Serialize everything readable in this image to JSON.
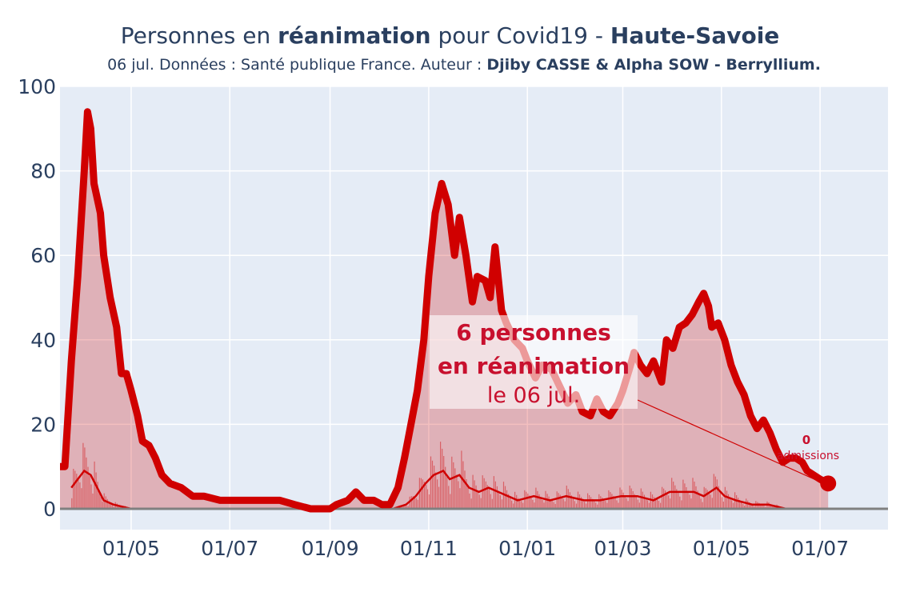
{
  "title": {
    "part1": "Personnes en ",
    "bold1": "réanimation",
    "part2": " pour Covid19 - ",
    "bold2": "Haute-Savoie"
  },
  "subtitle": {
    "text": "06 jul. Données : Santé publique France. Auteur : ",
    "authors": "Djiby CASSE & Alpha SOW - Berryllium."
  },
  "annotation": {
    "line1": "6 personnes",
    "line2": "en réanimation",
    "line3": "le 06 jul."
  },
  "admissions": {
    "count": "0",
    "label": "admissions"
  },
  "colors": {
    "plot_bg": "#e5ecf6",
    "line": "#d00000",
    "fill": "rgba(208,0,0,0.25)",
    "text": "#2a3f5f"
  },
  "chart_data": {
    "type": "area",
    "x_unit": "date",
    "x_range": [
      "2020-03-18",
      "2021-08-12"
    ],
    "ylim": [
      0,
      100
    ],
    "y_ticks": [
      "0",
      "20",
      "40",
      "60",
      "80",
      "100"
    ],
    "x_ticks": [
      {
        "date": "2020-05-01",
        "label": "01/05"
      },
      {
        "date": "2020-07-01",
        "label": "01/07"
      },
      {
        "date": "2020-09-01",
        "label": "01/09"
      },
      {
        "date": "2020-11-01",
        "label": "01/11"
      },
      {
        "date": "2021-01-01",
        "label": "01/01"
      },
      {
        "date": "2021-03-01",
        "label": "01/03"
      },
      {
        "date": "2021-05-01",
        "label": "01/05"
      },
      {
        "date": "2021-07-01",
        "label": "01/07"
      }
    ],
    "series": [
      {
        "name": "réanimation",
        "points": [
          [
            "2020-03-18",
            10
          ],
          [
            "2020-03-21",
            10
          ],
          [
            "2020-03-25",
            35
          ],
          [
            "2020-03-29",
            55
          ],
          [
            "2020-04-02",
            80
          ],
          [
            "2020-04-04",
            94
          ],
          [
            "2020-04-06",
            90
          ],
          [
            "2020-04-08",
            77
          ],
          [
            "2020-04-12",
            70
          ],
          [
            "2020-04-14",
            60
          ],
          [
            "2020-04-18",
            50
          ],
          [
            "2020-04-22",
            43
          ],
          [
            "2020-04-25",
            32
          ],
          [
            "2020-04-28",
            32
          ],
          [
            "2020-05-01",
            28
          ],
          [
            "2020-05-05",
            22
          ],
          [
            "2020-05-08",
            16
          ],
          [
            "2020-05-12",
            15
          ],
          [
            "2020-05-16",
            12
          ],
          [
            "2020-05-20",
            8
          ],
          [
            "2020-05-25",
            6
          ],
          [
            "2020-06-01",
            5
          ],
          [
            "2020-06-08",
            3
          ],
          [
            "2020-06-15",
            3
          ],
          [
            "2020-06-25",
            2
          ],
          [
            "2020-07-10",
            2
          ],
          [
            "2020-08-01",
            2
          ],
          [
            "2020-08-10",
            1
          ],
          [
            "2020-08-20",
            0
          ],
          [
            "2020-09-01",
            0
          ],
          [
            "2020-09-05",
            1
          ],
          [
            "2020-09-12",
            2
          ],
          [
            "2020-09-17",
            4
          ],
          [
            "2020-09-22",
            2
          ],
          [
            "2020-09-28",
            2
          ],
          [
            "2020-10-03",
            1
          ],
          [
            "2020-10-08",
            1
          ],
          [
            "2020-10-13",
            5
          ],
          [
            "2020-10-17",
            12
          ],
          [
            "2020-10-21",
            20
          ],
          [
            "2020-10-25",
            28
          ],
          [
            "2020-10-29",
            40
          ],
          [
            "2020-11-01",
            55
          ],
          [
            "2020-11-05",
            70
          ],
          [
            "2020-11-09",
            77
          ],
          [
            "2020-11-13",
            72
          ],
          [
            "2020-11-17",
            60
          ],
          [
            "2020-11-20",
            69
          ],
          [
            "2020-11-24",
            60
          ],
          [
            "2020-11-28",
            49
          ],
          [
            "2020-12-01",
            55
          ],
          [
            "2020-12-06",
            54
          ],
          [
            "2020-12-09",
            50
          ],
          [
            "2020-12-12",
            62
          ],
          [
            "2020-12-16",
            47
          ],
          [
            "2020-12-19",
            44
          ],
          [
            "2020-12-24",
            40
          ],
          [
            "2020-12-29",
            38
          ],
          [
            "2021-01-01",
            35
          ],
          [
            "2021-01-06",
            31
          ],
          [
            "2021-01-10",
            34
          ],
          [
            "2021-01-16",
            33
          ],
          [
            "2021-01-21",
            29
          ],
          [
            "2021-01-26",
            25
          ],
          [
            "2021-01-31",
            27
          ],
          [
            "2021-02-04",
            23
          ],
          [
            "2021-02-09",
            22
          ],
          [
            "2021-02-13",
            26
          ],
          [
            "2021-02-17",
            23
          ],
          [
            "2021-02-21",
            22
          ],
          [
            "2021-02-26",
            25
          ],
          [
            "2021-03-01",
            28
          ],
          [
            "2021-03-05",
            33
          ],
          [
            "2021-03-08",
            37
          ],
          [
            "2021-03-12",
            34
          ],
          [
            "2021-03-16",
            32
          ],
          [
            "2021-03-20",
            35
          ],
          [
            "2021-03-25",
            30
          ],
          [
            "2021-03-28",
            40
          ],
          [
            "2021-04-01",
            38
          ],
          [
            "2021-04-05",
            43
          ],
          [
            "2021-04-09",
            44
          ],
          [
            "2021-04-13",
            46
          ],
          [
            "2021-04-17",
            49
          ],
          [
            "2021-04-20",
            51
          ],
          [
            "2021-04-23",
            48
          ],
          [
            "2021-04-25",
            43
          ],
          [
            "2021-04-29",
            44
          ],
          [
            "2021-05-03",
            40
          ],
          [
            "2021-05-07",
            34
          ],
          [
            "2021-05-11",
            30
          ],
          [
            "2021-05-15",
            27
          ],
          [
            "2021-05-19",
            22
          ],
          [
            "2021-05-23",
            19
          ],
          [
            "2021-05-27",
            21
          ],
          [
            "2021-05-31",
            18
          ],
          [
            "2021-06-04",
            14
          ],
          [
            "2021-06-08",
            11
          ],
          [
            "2021-06-12",
            12
          ],
          [
            "2021-06-16",
            12
          ],
          [
            "2021-06-20",
            11
          ],
          [
            "2021-06-23",
            9
          ],
          [
            "2021-06-27",
            8
          ],
          [
            "2021-07-01",
            7
          ],
          [
            "2021-07-06",
            6
          ]
        ]
      },
      {
        "name": "admissions",
        "points": [
          [
            "2020-03-25",
            5
          ],
          [
            "2020-03-29",
            7
          ],
          [
            "2020-04-02",
            9
          ],
          [
            "2020-04-06",
            8
          ],
          [
            "2020-04-10",
            5
          ],
          [
            "2020-04-14",
            2
          ],
          [
            "2020-04-20",
            1
          ],
          [
            "2020-05-01",
            0
          ],
          [
            "2020-08-01",
            0
          ],
          [
            "2020-10-10",
            0
          ],
          [
            "2020-10-18",
            1
          ],
          [
            "2020-10-24",
            3
          ],
          [
            "2020-10-30",
            6
          ],
          [
            "2020-11-04",
            8
          ],
          [
            "2020-11-10",
            9
          ],
          [
            "2020-11-14",
            7
          ],
          [
            "2020-11-20",
            8
          ],
          [
            "2020-11-26",
            5
          ],
          [
            "2020-12-02",
            4
          ],
          [
            "2020-12-08",
            5
          ],
          [
            "2020-12-14",
            4
          ],
          [
            "2020-12-20",
            3
          ],
          [
            "2020-12-26",
            2
          ],
          [
            "2021-01-05",
            3
          ],
          [
            "2021-01-15",
            2
          ],
          [
            "2021-01-25",
            3
          ],
          [
            "2021-02-05",
            2
          ],
          [
            "2021-02-15",
            2
          ],
          [
            "2021-02-28",
            3
          ],
          [
            "2021-03-10",
            3
          ],
          [
            "2021-03-20",
            2
          ],
          [
            "2021-03-30",
            4
          ],
          [
            "2021-04-09",
            4
          ],
          [
            "2021-04-14",
            4
          ],
          [
            "2021-04-20",
            3
          ],
          [
            "2021-04-28",
            5
          ],
          [
            "2021-05-03",
            3
          ],
          [
            "2021-05-10",
            2
          ],
          [
            "2021-05-20",
            1
          ],
          [
            "2021-05-30",
            1
          ],
          [
            "2021-06-10",
            0
          ],
          [
            "2021-06-25",
            0
          ],
          [
            "2021-07-06",
            0
          ]
        ]
      }
    ],
    "last_point": {
      "date": "2021-07-06",
      "value": 6
    }
  }
}
